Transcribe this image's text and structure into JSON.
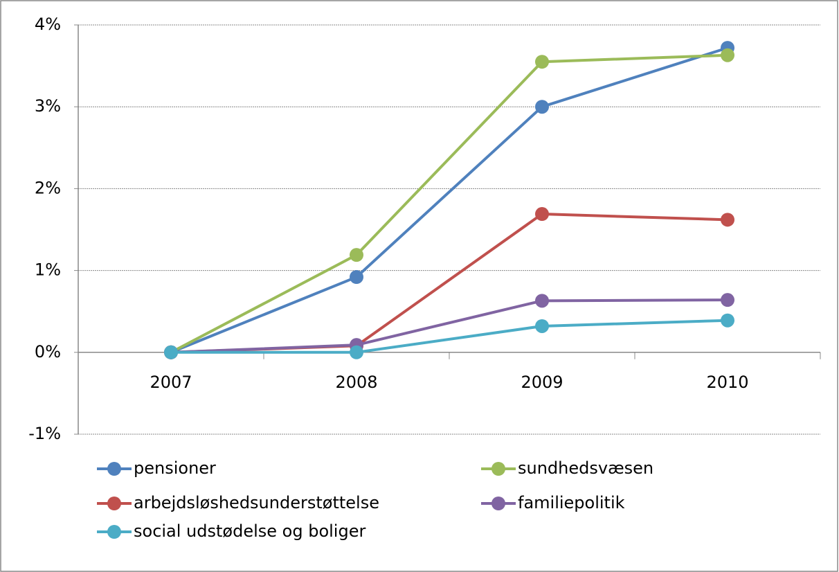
{
  "chart_data": {
    "type": "line",
    "categories": [
      "2007",
      "2008",
      "2009",
      "2010"
    ],
    "series": [
      {
        "name": "pensioner",
        "color": "#4f81bd",
        "values": [
          0,
          0.92,
          3.0,
          3.72
        ]
      },
      {
        "name": "sundhedsvæsen",
        "color": "#9bbb59",
        "values": [
          0,
          1.19,
          3.55,
          3.63
        ]
      },
      {
        "name": "arbejdsløshedsunderstøttelse",
        "color": "#c0504d",
        "values": [
          0,
          0.08,
          1.69,
          1.62
        ]
      },
      {
        "name": "familiepolitik",
        "color": "#8064a2",
        "values": [
          0,
          0.09,
          0.63,
          0.64
        ]
      },
      {
        "name": "social udstødelse og boliger",
        "color": "#4bacc6",
        "values": [
          0,
          0,
          0.32,
          0.39
        ]
      }
    ],
    "ylim": [
      -1,
      4
    ],
    "yticks": [
      {
        "value": -1,
        "label": "-1%"
      },
      {
        "value": 0,
        "label": "0%"
      },
      {
        "value": 1,
        "label": "1%"
      },
      {
        "value": 2,
        "label": "2%"
      },
      {
        "value": 3,
        "label": "3%"
      },
      {
        "value": 4,
        "label": "4%"
      }
    ],
    "grid": true
  }
}
